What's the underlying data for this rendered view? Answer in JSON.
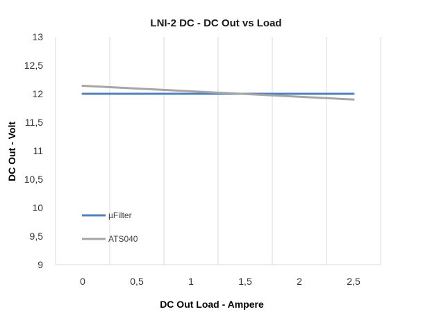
{
  "chart_data": {
    "type": "line",
    "title": "LNI-2 DC - DC Out vs Load",
    "xlabel": "DC Out Load - Ampere",
    "ylabel": "DC Out - Volt",
    "x": [
      0,
      2.5
    ],
    "x_ticks": [
      "0",
      "0,5",
      "1",
      "1,5",
      "2",
      "2,5"
    ],
    "x_tick_values": [
      0,
      0.5,
      1,
      1.5,
      2,
      2.5
    ],
    "y_ticks": [
      "9",
      "9,5",
      "10",
      "10,5",
      "11",
      "11,5",
      "12",
      "12,5",
      "13"
    ],
    "y_tick_values": [
      9,
      9.5,
      10,
      10.5,
      11,
      11.5,
      12,
      12.5,
      13
    ],
    "xlim": [
      -0.25,
      2.75
    ],
    "ylim": [
      9,
      13
    ],
    "grid": "vertical",
    "legend_position": "inside-bottom-left",
    "series": [
      {
        "name": "µFilter",
        "color": "#4f81bd",
        "values": [
          12.0,
          12.0
        ]
      },
      {
        "name": "ATS040",
        "color": "#a6a6a6",
        "values": [
          12.14,
          11.9
        ]
      }
    ]
  }
}
